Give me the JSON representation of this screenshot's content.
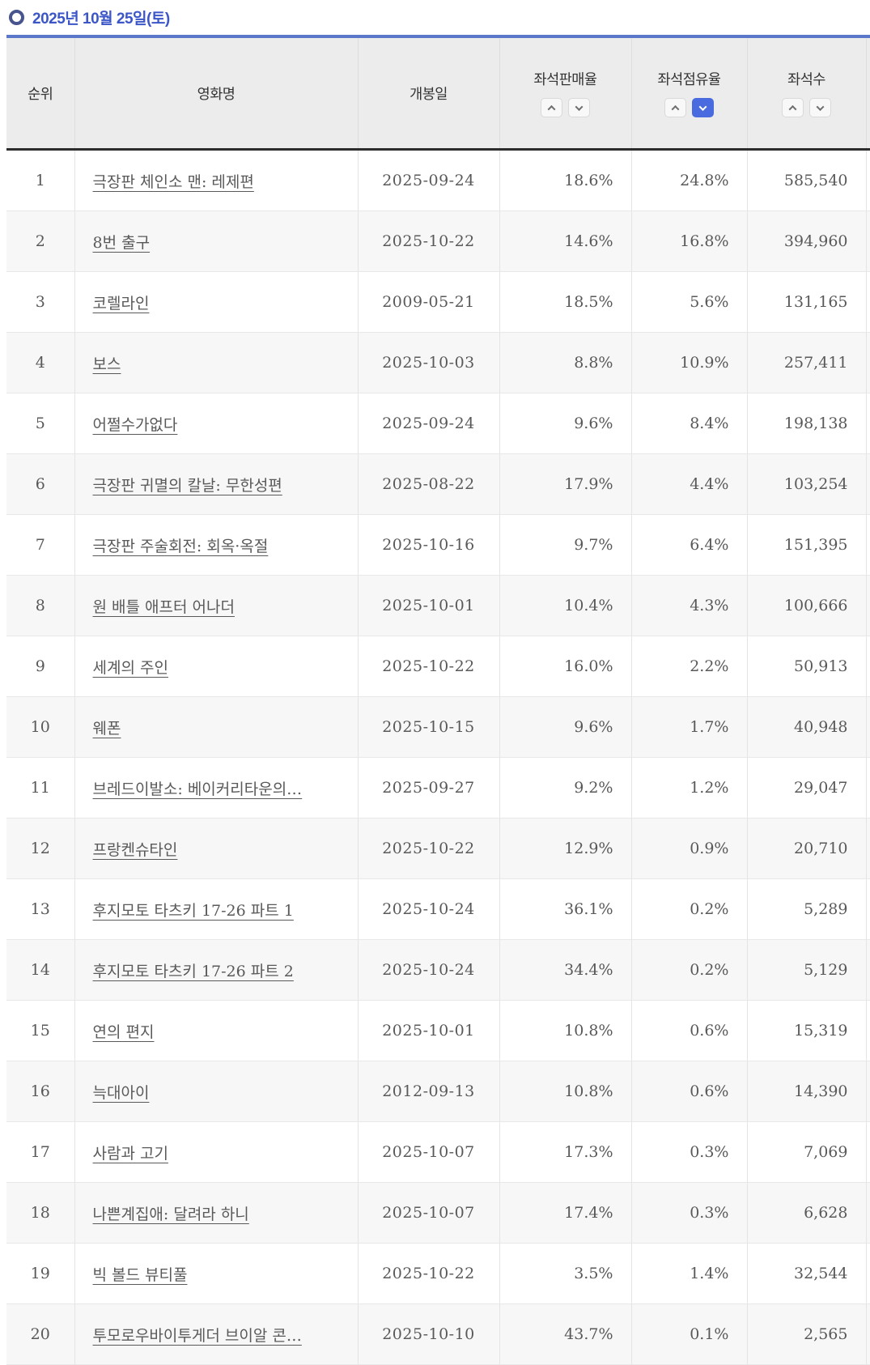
{
  "page": {
    "title": "2025년 10월 25일(토)"
  },
  "colors": {
    "title_text": "#3c56c8",
    "bullet_ring": "#47548e",
    "table_top_border": "#5b77ca",
    "header_bg": "#ececec",
    "header_underline": "#2d2d2d",
    "row_stripe": "#f7f7f7",
    "active_sort_button": "#4a6be0",
    "data_text": "#595959"
  },
  "table": {
    "columns": [
      {
        "key": "rank",
        "label": "순위",
        "sortable": false
      },
      {
        "key": "title",
        "label": "영화명",
        "sortable": false
      },
      {
        "key": "release",
        "label": "개봉일",
        "sortable": false
      },
      {
        "key": "sales",
        "label": "좌석판매율",
        "sortable": true,
        "sort_active": null
      },
      {
        "key": "occupancy",
        "label": "좌석점유율",
        "sortable": true,
        "sort_active": "desc"
      },
      {
        "key": "seats",
        "label": "좌석수",
        "sortable": true,
        "sort_active": null
      }
    ],
    "rows": [
      {
        "rank": 1,
        "title": "극장판 체인소 맨: 레제편",
        "release": "2025-09-24",
        "sales": "18.6%",
        "occupancy": "24.8%",
        "seats": "585,540"
      },
      {
        "rank": 2,
        "title": "8번 출구",
        "release": "2025-10-22",
        "sales": "14.6%",
        "occupancy": "16.8%",
        "seats": "394,960"
      },
      {
        "rank": 3,
        "title": "코렐라인",
        "release": "2009-05-21",
        "sales": "18.5%",
        "occupancy": "5.6%",
        "seats": "131,165"
      },
      {
        "rank": 4,
        "title": "보스",
        "release": "2025-10-03",
        "sales": "8.8%",
        "occupancy": "10.9%",
        "seats": "257,411"
      },
      {
        "rank": 5,
        "title": "어쩔수가없다",
        "release": "2025-09-24",
        "sales": "9.6%",
        "occupancy": "8.4%",
        "seats": "198,138"
      },
      {
        "rank": 6,
        "title": "극장판 귀멸의 칼날: 무한성편",
        "release": "2025-08-22",
        "sales": "17.9%",
        "occupancy": "4.4%",
        "seats": "103,254"
      },
      {
        "rank": 7,
        "title": "극장판 주술회전: 회옥·옥절",
        "release": "2025-10-16",
        "sales": "9.7%",
        "occupancy": "6.4%",
        "seats": "151,395"
      },
      {
        "rank": 8,
        "title": "원 배틀 애프터 어나더",
        "release": "2025-10-01",
        "sales": "10.4%",
        "occupancy": "4.3%",
        "seats": "100,666"
      },
      {
        "rank": 9,
        "title": "세계의 주인",
        "release": "2025-10-22",
        "sales": "16.0%",
        "occupancy": "2.2%",
        "seats": "50,913"
      },
      {
        "rank": 10,
        "title": "웨폰",
        "release": "2025-10-15",
        "sales": "9.6%",
        "occupancy": "1.7%",
        "seats": "40,948"
      },
      {
        "rank": 11,
        "title": "브레드이발소: 베이커리타운의…",
        "release": "2025-09-27",
        "sales": "9.2%",
        "occupancy": "1.2%",
        "seats": "29,047"
      },
      {
        "rank": 12,
        "title": "프랑켄슈타인",
        "release": "2025-10-22",
        "sales": "12.9%",
        "occupancy": "0.9%",
        "seats": "20,710"
      },
      {
        "rank": 13,
        "title": "후지모토 타츠키 17-26 파트 1",
        "release": "2025-10-24",
        "sales": "36.1%",
        "occupancy": "0.2%",
        "seats": "5,289"
      },
      {
        "rank": 14,
        "title": "후지모토 타츠키 17-26 파트 2",
        "release": "2025-10-24",
        "sales": "34.4%",
        "occupancy": "0.2%",
        "seats": "5,129"
      },
      {
        "rank": 15,
        "title": "연의 편지",
        "release": "2025-10-01",
        "sales": "10.8%",
        "occupancy": "0.6%",
        "seats": "15,319"
      },
      {
        "rank": 16,
        "title": "늑대아이",
        "release": "2012-09-13",
        "sales": "10.8%",
        "occupancy": "0.6%",
        "seats": "14,390"
      },
      {
        "rank": 17,
        "title": "사람과 고기",
        "release": "2025-10-07",
        "sales": "17.3%",
        "occupancy": "0.3%",
        "seats": "7,069"
      },
      {
        "rank": 18,
        "title": "나쁜계집애: 달려라 하니",
        "release": "2025-10-07",
        "sales": "17.4%",
        "occupancy": "0.3%",
        "seats": "6,628"
      },
      {
        "rank": 19,
        "title": "빅 볼드 뷰티풀",
        "release": "2025-10-22",
        "sales": "3.5%",
        "occupancy": "1.4%",
        "seats": "32,544"
      },
      {
        "rank": 20,
        "title": "투모로우바이투게더 브이알 콘…",
        "release": "2025-10-10",
        "sales": "43.7%",
        "occupancy": "0.1%",
        "seats": "2,565"
      }
    ]
  }
}
